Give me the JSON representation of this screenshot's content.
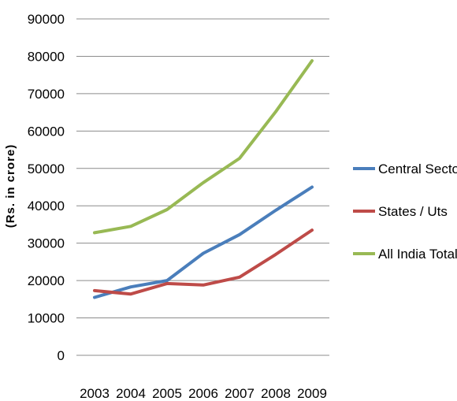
{
  "chart_data": {
    "type": "line",
    "title": "",
    "xlabel": "",
    "ylabel": "(Rs. in crore)",
    "categories": [
      "2003",
      "2004",
      "2005",
      "2006",
      "2007",
      "2008",
      "2009"
    ],
    "ylim": [
      0,
      90000
    ],
    "yticks": [
      "0",
      "10000",
      "20000",
      "30000",
      "40000",
      "50000",
      "60000",
      "70000",
      "80000",
      "90000"
    ],
    "grid": true,
    "legend_position": "right",
    "series": [
      {
        "name": "Central Sector",
        "color": "#4a7ebb",
        "values": [
          15500,
          18300,
          20000,
          27300,
          32300,
          38800,
          45000
        ]
      },
      {
        "name": "States / Uts",
        "color": "#be4b48",
        "values": [
          17300,
          16400,
          19200,
          18800,
          20900,
          27000,
          33500
        ]
      },
      {
        "name": "All India Total",
        "color": "#98b954",
        "values": [
          32800,
          34500,
          39000,
          46200,
          52700,
          65200,
          78800
        ]
      }
    ]
  }
}
